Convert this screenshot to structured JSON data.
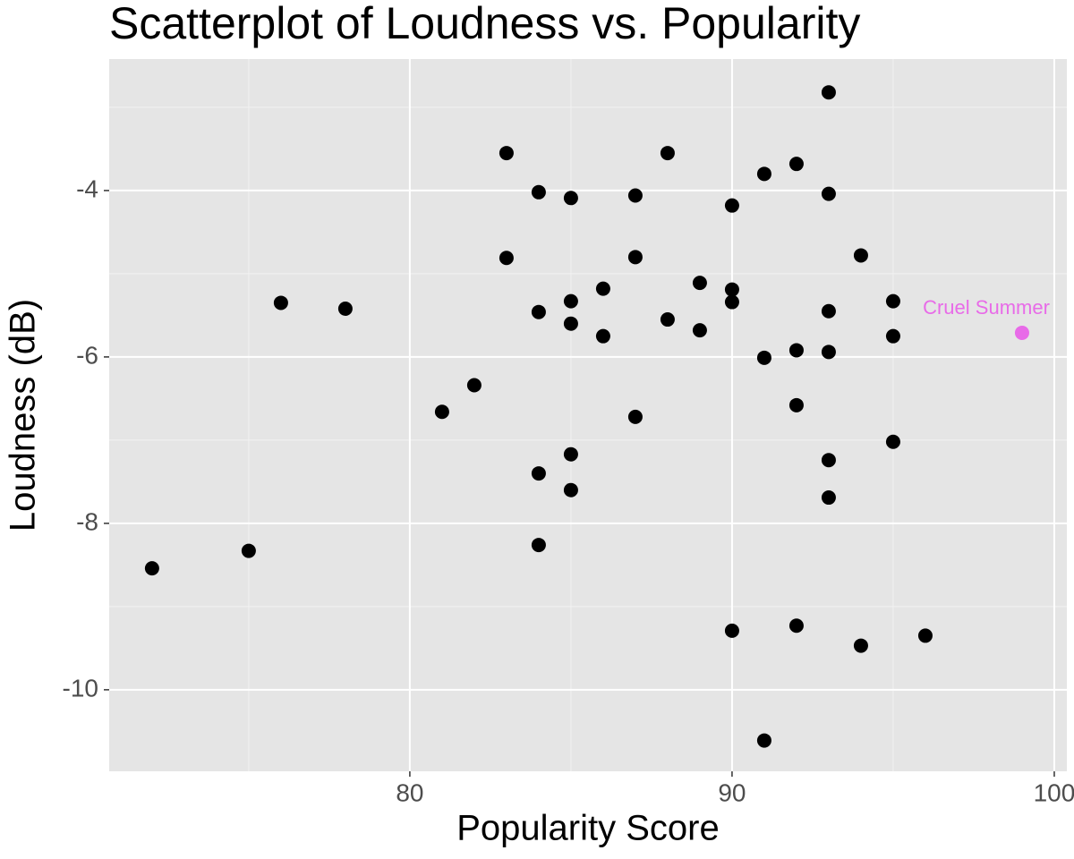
{
  "chart_data": {
    "type": "scatter",
    "title": "Scatterplot of Loudness vs. Popularity",
    "x_label": "Popularity Score",
    "y_label": "Loudness (dB)",
    "x": [
      72,
      75,
      76,
      78,
      81,
      82,
      83,
      83,
      84,
      84,
      84,
      84,
      85,
      85,
      85,
      85,
      85,
      86,
      86,
      87,
      87,
      87,
      88,
      88,
      89,
      89,
      90,
      90,
      90,
      90,
      91,
      91,
      91,
      92,
      92,
      92,
      92,
      93,
      93,
      93,
      93,
      93,
      93,
      94,
      94,
      95,
      95,
      95,
      96
    ],
    "y": [
      -8.54,
      -8.33,
      -5.35,
      -5.42,
      -6.66,
      -6.34,
      -3.55,
      -4.81,
      -4.02,
      -5.46,
      -7.4,
      -8.26,
      -4.09,
      -5.33,
      -5.6,
      -7.17,
      -7.6,
      -5.18,
      -5.75,
      -4.06,
      -4.8,
      -6.72,
      -3.55,
      -5.55,
      -5.11,
      -5.68,
      -4.18,
      -5.19,
      -5.34,
      -9.29,
      -3.8,
      -6.01,
      -10.61,
      -3.68,
      -5.92,
      -6.58,
      -9.23,
      -2.82,
      -4.04,
      -5.45,
      -5.94,
      -7.24,
      -7.69,
      -4.78,
      -9.47,
      -5.33,
      -5.75,
      -7.02,
      -9.35
    ],
    "color": "#000000",
    "highlight": {
      "label": "Cruel Summer",
      "x": 99,
      "y": -5.71,
      "color": "#e86be8"
    },
    "xlim": [
      70.67,
      100.39
    ],
    "ylim": [
      -10.98,
      -2.42
    ],
    "xticks": [
      80,
      90,
      100
    ],
    "yticks": [
      -10,
      -8,
      -6,
      -4
    ],
    "x_minor_grid": [
      75,
      85,
      95
    ],
    "y_minor_grid": [
      -9,
      -7,
      -5,
      -3
    ],
    "grid": true
  }
}
